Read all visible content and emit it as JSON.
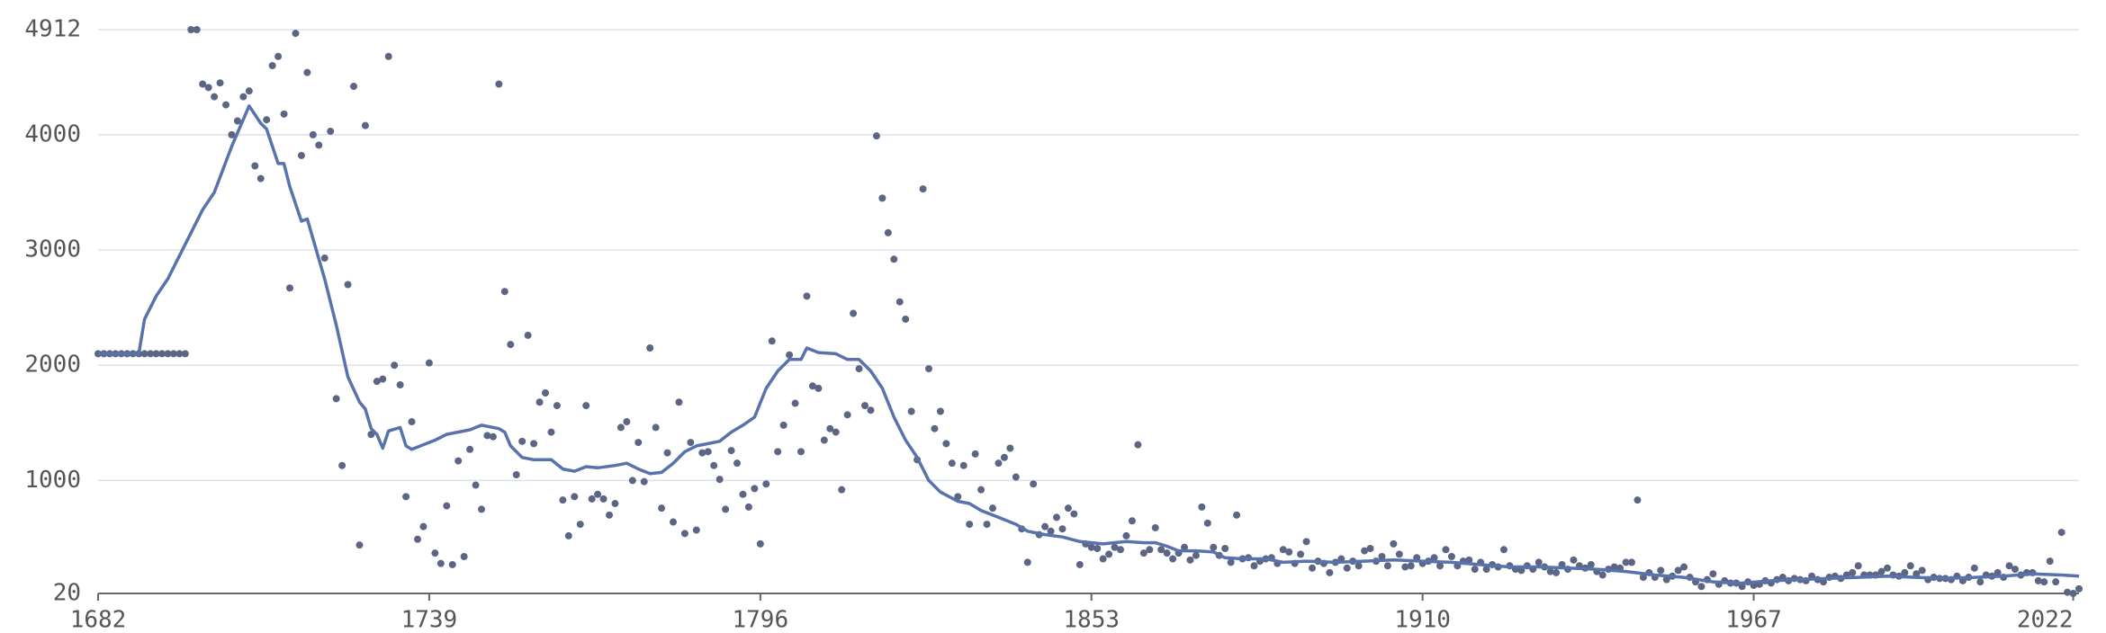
{
  "chart_data": {
    "type": "scatter",
    "grid": true,
    "xlim": [
      1682,
      2023
    ],
    "xticks": [
      1682,
      1739,
      1796,
      1853,
      1910,
      1967,
      2022
    ],
    "ylim": [
      20,
      4912
    ],
    "yticks": [
      20,
      1000,
      2000,
      3000,
      4000,
      4912
    ],
    "x": [
      1682,
      1683,
      1684,
      1685,
      1686,
      1687,
      1688,
      1689,
      1690,
      1691,
      1692,
      1693,
      1694,
      1695,
      1696,
      1697,
      1698,
      1699,
      1700,
      1701,
      1702,
      1703,
      1704,
      1705,
      1706,
      1707,
      1708,
      1709,
      1710,
      1711,
      1712,
      1713,
      1714,
      1715,
      1716,
      1717,
      1718,
      1719,
      1720,
      1721,
      1722,
      1723,
      1724,
      1725,
      1726,
      1727,
      1728,
      1729,
      1730,
      1731,
      1732,
      1733,
      1734,
      1735,
      1736,
      1737,
      1738,
      1739,
      1740,
      1741,
      1742,
      1743,
      1744,
      1745,
      1746,
      1747,
      1748,
      1749,
      1750,
      1751,
      1752,
      1753,
      1754,
      1755,
      1756,
      1757,
      1758,
      1759,
      1760,
      1761,
      1762,
      1763,
      1764,
      1765,
      1766,
      1767,
      1768,
      1769,
      1770,
      1771,
      1772,
      1773,
      1774,
      1775,
      1776,
      1777,
      1778,
      1779,
      1780,
      1781,
      1782,
      1783,
      1784,
      1785,
      1786,
      1787,
      1788,
      1789,
      1790,
      1791,
      1792,
      1793,
      1794,
      1795,
      1796,
      1797,
      1798,
      1799,
      1800,
      1801,
      1802,
      1803,
      1804,
      1805,
      1806,
      1807,
      1808,
      1809,
      1810,
      1811,
      1812,
      1813,
      1814,
      1815,
      1816,
      1817,
      1818,
      1819,
      1820,
      1821,
      1822,
      1823,
      1824,
      1825,
      1826,
      1827,
      1828,
      1829,
      1830,
      1831,
      1832,
      1833,
      1834,
      1835,
      1836,
      1837,
      1838,
      1839,
      1840,
      1841,
      1842,
      1843,
      1844,
      1845,
      1846,
      1847,
      1848,
      1849,
      1850,
      1851,
      1852,
      1853,
      1854,
      1855,
      1856,
      1857,
      1858,
      1859,
      1860,
      1861,
      1862,
      1863,
      1864,
      1865,
      1866,
      1867,
      1868,
      1869,
      1870,
      1871,
      1872,
      1873,
      1874,
      1875,
      1876,
      1877,
      1878,
      1879,
      1880,
      1881,
      1882,
      1883,
      1884,
      1885,
      1886,
      1887,
      1888,
      1889,
      1890,
      1891,
      1892,
      1893,
      1894,
      1895,
      1896,
      1897,
      1898,
      1899,
      1900,
      1901,
      1902,
      1903,
      1904,
      1905,
      1906,
      1907,
      1908,
      1909,
      1910,
      1911,
      1912,
      1913,
      1914,
      1915,
      1916,
      1917,
      1918,
      1919,
      1920,
      1921,
      1922,
      1923,
      1924,
      1925,
      1926,
      1927,
      1928,
      1929,
      1930,
      1931,
      1932,
      1933,
      1934,
      1935,
      1936,
      1937,
      1938,
      1939,
      1940,
      1941,
      1942,
      1943,
      1944,
      1945,
      1946,
      1947,
      1948,
      1949,
      1950,
      1951,
      1952,
      1953,
      1954,
      1955,
      1956,
      1957,
      1958,
      1959,
      1960,
      1961,
      1962,
      1963,
      1964,
      1965,
      1966,
      1967,
      1968,
      1969,
      1970,
      1971,
      1972,
      1973,
      1974,
      1975,
      1976,
      1977,
      1978,
      1979,
      1980,
      1981,
      1982,
      1983,
      1984,
      1985,
      1986,
      1987,
      1988,
      1989,
      1990,
      1991,
      1992,
      1993,
      1994,
      1995,
      1996,
      1997,
      1998,
      1999,
      2000,
      2001,
      2002,
      2003,
      2004,
      2005,
      2006,
      2007,
      2008,
      2009,
      2010,
      2011,
      2012,
      2013,
      2014,
      2015,
      2016,
      2017,
      2018,
      2019,
      2020,
      2021,
      2022,
      2023
    ],
    "series": [
      {
        "type": "scatter",
        "color": "#5c6684",
        "values": [
          2100,
          2100,
          2100,
          2100,
          2100,
          2100,
          2100,
          2100,
          2100,
          2100,
          2100,
          2100,
          2100,
          2100,
          2100,
          2100,
          4912,
          4912,
          4440,
          4410,
          4330,
          4450,
          4260,
          4000,
          4120,
          4330,
          4380,
          3730,
          3620,
          4130,
          4600,
          4680,
          4180,
          2670,
          4880,
          3820,
          4540,
          4000,
          3910,
          2930,
          4030,
          1710,
          1130,
          2700,
          4420,
          440,
          4080,
          1400,
          1860,
          1880,
          4680,
          2000,
          1830,
          860,
          1510,
          490,
          600,
          2020,
          370,
          280,
          780,
          270,
          1170,
          340,
          1270,
          960,
          750,
          1390,
          1380,
          4440,
          2640,
          2180,
          1050,
          1340,
          2260,
          1320,
          1680,
          1760,
          1420,
          1650,
          830,
          520,
          860,
          620,
          1650,
          840,
          880,
          840,
          700,
          800,
          1460,
          1510,
          1000,
          1330,
          990,
          2150,
          1460,
          760,
          1240,
          640,
          1680,
          540,
          1330,
          570,
          1240,
          1250,
          1130,
          1010,
          750,
          1260,
          1150,
          880,
          770,
          930,
          450,
          970,
          2210,
          1250,
          1480,
          2090,
          1670,
          1250,
          2600,
          1820,
          1800,
          1350,
          1450,
          1420,
          920,
          1570,
          2450,
          1970,
          1650,
          1610,
          3990,
          3450,
          3150,
          2920,
          2550,
          2400,
          1600,
          1180,
          3530,
          1970,
          1450,
          1600,
          1320,
          1150,
          860,
          1130,
          620,
          1230,
          920,
          620,
          760,
          1150,
          1200,
          1280,
          1030,
          580,
          290,
          970,
          530,
          600,
          560,
          680,
          580,
          760,
          710,
          270,
          450,
          420,
          410,
          320,
          360,
          420,
          400,
          520,
          650,
          1310,
          370,
          400,
          590,
          400,
          370,
          320,
          370,
          420,
          310,
          350,
          770,
          630,
          420,
          350,
          410,
          290,
          700,
          320,
          330,
          260,
          300,
          320,
          330,
          280,
          400,
          380,
          280,
          360,
          470,
          240,
          300,
          280,
          200,
          290,
          320,
          240,
          300,
          260,
          390,
          410,
          300,
          340,
          260,
          450,
          360,
          250,
          260,
          330,
          280,
          300,
          330,
          260,
          400,
          340,
          260,
          300,
          310,
          230,
          290,
          230,
          270,
          250,
          400,
          260,
          230,
          220,
          260,
          230,
          290,
          250,
          210,
          200,
          270,
          230,
          310,
          260,
          240,
          270,
          210,
          180,
          230,
          250,
          240,
          290,
          290,
          830,
          160,
          200,
          160,
          220,
          140,
          170,
          220,
          250,
          160,
          120,
          80,
          140,
          190,
          100,
          130,
          110,
          110,
          80,
          120,
          90,
          100,
          130,
          110,
          140,
          160,
          130,
          150,
          140,
          130,
          170,
          140,
          120,
          160,
          170,
          150,
          180,
          200,
          260,
          180,
          180,
          180,
          210,
          240,
          180,
          170,
          200,
          260,
          190,
          220,
          140,
          160,
          150,
          150,
          140,
          170,
          130,
          160,
          240,
          120,
          180,
          170,
          200,
          160,
          260,
          230,
          180,
          200,
          200,
          130,
          120,
          300,
          120,
          550,
          30,
          20,
          60
        ]
      },
      {
        "type": "line",
        "color": "#5872ab",
        "x": [
          1682,
          1689,
          1690,
          1692,
          1694,
          1698,
          1700,
          1702,
          1705,
          1708,
          1710,
          1711,
          1713,
          1714,
          1715,
          1717,
          1718,
          1721,
          1723,
          1725,
          1727,
          1728,
          1729,
          1730,
          1731,
          1732,
          1734,
          1735,
          1736,
          1740,
          1742,
          1746,
          1748,
          1751,
          1752,
          1753,
          1755,
          1757,
          1760,
          1762,
          1764,
          1766,
          1768,
          1771,
          1773,
          1775,
          1777,
          1779,
          1781,
          1783,
          1785,
          1787,
          1789,
          1791,
          1793,
          1795,
          1797,
          1799,
          1801,
          1803,
          1804,
          1806,
          1809,
          1811,
          1813,
          1815,
          1817,
          1819,
          1821,
          1823,
          1825,
          1827,
          1830,
          1832,
          1834,
          1837,
          1840,
          1842,
          1845,
          1848,
          1851,
          1855,
          1859,
          1862,
          1864,
          1866,
          1868,
          1871,
          1874,
          1876,
          1879,
          1883,
          1886,
          1890,
          1895,
          1900,
          1905,
          1910,
          1915,
          1920,
          1925,
          1930,
          1935,
          1940,
          1945,
          1950,
          1955,
          1960,
          1965,
          1970,
          1975,
          1980,
          1985,
          1990,
          1995,
          2000,
          2005,
          2010,
          2015,
          2020,
          2023
        ],
        "values": [
          2100,
          2100,
          2400,
          2600,
          2750,
          3150,
          3350,
          3500,
          3900,
          4250,
          4100,
          4050,
          3750,
          3750,
          3550,
          3250,
          3270,
          2750,
          2350,
          1900,
          1680,
          1620,
          1450,
          1400,
          1280,
          1430,
          1460,
          1300,
          1270,
          1350,
          1400,
          1440,
          1480,
          1450,
          1420,
          1300,
          1200,
          1180,
          1180,
          1100,
          1080,
          1120,
          1110,
          1130,
          1150,
          1100,
          1060,
          1070,
          1150,
          1250,
          1300,
          1320,
          1340,
          1420,
          1480,
          1550,
          1800,
          1950,
          2050,
          2050,
          2150,
          2110,
          2100,
          2050,
          2050,
          1950,
          1800,
          1550,
          1350,
          1200,
          1000,
          900,
          820,
          800,
          740,
          680,
          620,
          560,
          530,
          510,
          470,
          450,
          470,
          460,
          460,
          430,
          390,
          390,
          380,
          330,
          320,
          320,
          290,
          300,
          290,
          300,
          310,
          300,
          290,
          270,
          250,
          250,
          240,
          230,
          210,
          180,
          160,
          120,
          110,
          130,
          140,
          150,
          160,
          170,
          160,
          150,
          160,
          170,
          190,
          180,
          170
        ]
      }
    ]
  }
}
